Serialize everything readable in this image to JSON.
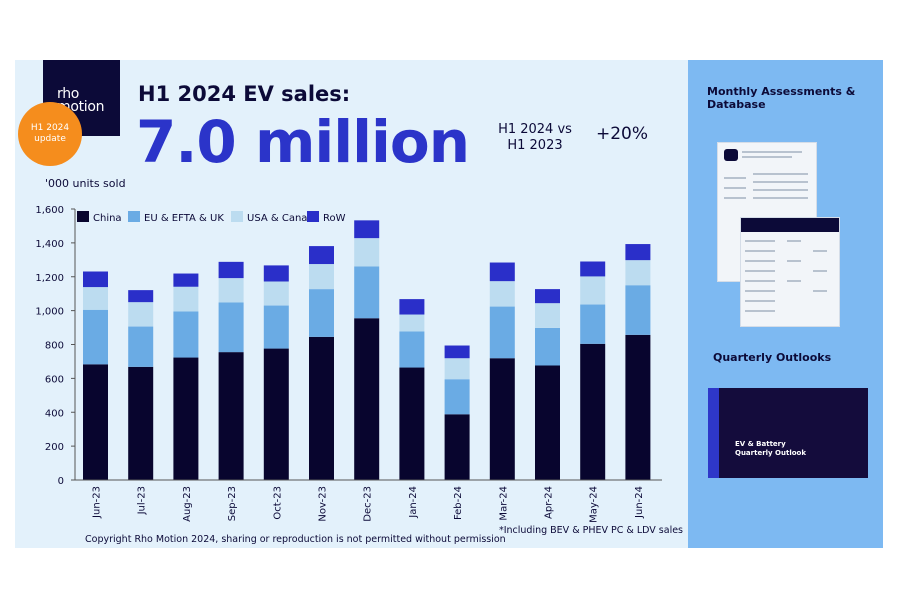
{
  "logo": {
    "line1": "rho",
    "line2": "motion"
  },
  "badge": {
    "line1": "H1 2024",
    "line2": "update"
  },
  "header": {
    "title": "H1 2024 EV sales:",
    "headline": "7.0 million",
    "comparison_line1": "H1 2024 vs",
    "comparison_line2": "H1 2023",
    "growth": "+20%"
  },
  "units_label": "'000 units sold",
  "footnote": "*Including BEV & PHEV PC & LDV sales",
  "copyright": "Copyright Rho Motion 2024, sharing or reproduction is not permitted without permission",
  "side": {
    "monthly_title": "Monthly Assessments & Database",
    "quarterly_title": "Quarterly Outlooks",
    "card_line1": "EV & Battery",
    "card_line2": "Quarterly Outlook"
  },
  "colors": {
    "China": "#08052e",
    "EU & EFTA & UK": "#6aabe4",
    "USA & Canada": "#bcdcf0",
    "RoW": "#2a2fc9",
    "accent": "#2b34c9",
    "badge": "#f58d1d"
  },
  "chart_data": {
    "type": "bar",
    "stacked": true,
    "ylabel": "'000 units sold",
    "ylim": [
      0,
      1600
    ],
    "yticks": [
      "0",
      "200",
      "400",
      "600",
      "800",
      "1,000",
      "1,200",
      "1,400",
      "1,600"
    ],
    "legend": "top-left",
    "grid": false,
    "categories": [
      "Jun-23",
      "Jul-23",
      "Aug-23",
      "Sep-23",
      "Oct-23",
      "Nov-23",
      "Dec-23",
      "Jan-24",
      "Feb-24",
      "Mar-24",
      "Apr-24",
      "May-24",
      "Jun-24"
    ],
    "series": [
      {
        "name": "China",
        "values": [
          683,
          668,
          723,
          755,
          776,
          845,
          955,
          664,
          388,
          719,
          676,
          804,
          857
        ]
      },
      {
        "name": "EU & EFTA & UK",
        "values": [
          322,
          238,
          272,
          293,
          254,
          282,
          306,
          213,
          207,
          305,
          222,
          232,
          293
        ]
      },
      {
        "name": "USA & Canada",
        "values": [
          134,
          144,
          146,
          144,
          142,
          148,
          167,
          100,
          124,
          150,
          146,
          166,
          148
        ]
      },
      {
        "name": "RoW",
        "values": [
          92,
          71,
          78,
          96,
          95,
          106,
          105,
          91,
          75,
          110,
          83,
          88,
          95
        ]
      }
    ]
  }
}
